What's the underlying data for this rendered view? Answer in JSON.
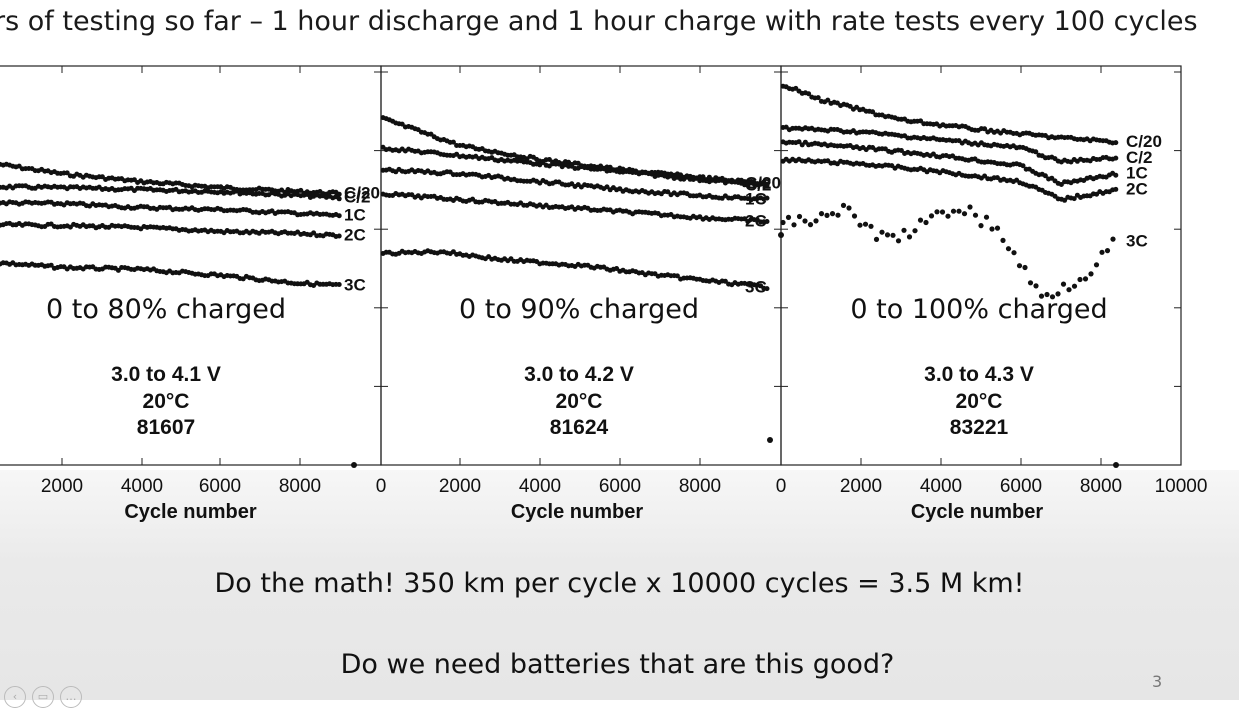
{
  "slide": {
    "title": "rs of testing so far – 1 hour discharge and 1 hour charge with rate tests every 100 cycles",
    "line1": "Do the math!  350 km per cycle x 10000 cycles = 3.5 M km!",
    "line2": "Do we need batteries that are this good?",
    "page_number": "3"
  },
  "controls": [
    {
      "icon": "prev-icon",
      "glyph": "‹"
    },
    {
      "icon": "slides-icon",
      "glyph": "▭"
    },
    {
      "icon": "more-icon",
      "glyph": "…"
    }
  ],
  "chart_data": [
    {
      "type": "scatter",
      "condition": "0 to 80% charged",
      "voltage": "3.0 to 4.1 V",
      "temperature": "20°C",
      "cell_id": "81607",
      "xlabel": "Cycle number",
      "xticks": [
        "2000",
        "4000",
        "6000",
        "8000"
      ],
      "xlim": [
        -1500,
        10000
      ],
      "ylim": [
        0,
        1
      ],
      "series": [
        {
          "name": "C/20",
          "x": [
            -1500,
            0,
            2000,
            4000,
            6000,
            8000,
            9000
          ],
          "values": [
            0.785,
            0.76,
            0.73,
            0.71,
            0.695,
            0.685,
            0.68
          ]
        },
        {
          "name": "C/2",
          "x": [
            -1500,
            2000,
            4000,
            6000,
            8000,
            9000
          ],
          "values": [
            0.7,
            0.695,
            0.69,
            0.685,
            0.675,
            0.67
          ]
        },
        {
          "name": "1C",
          "x": [
            -1500,
            2000,
            4000,
            6000,
            8000,
            9000
          ],
          "values": [
            0.66,
            0.655,
            0.645,
            0.64,
            0.63,
            0.625
          ]
        },
        {
          "name": "2C",
          "x": [
            -1500,
            2000,
            4000,
            6000,
            8000,
            9000
          ],
          "values": [
            0.605,
            0.6,
            0.595,
            0.585,
            0.58,
            0.575
          ]
        },
        {
          "name": "3C",
          "x": [
            -1500,
            0,
            2000,
            4000,
            6000,
            8000,
            9000
          ],
          "values": [
            0.52,
            0.51,
            0.495,
            0.49,
            0.475,
            0.455,
            0.45
          ]
        }
      ]
    },
    {
      "type": "scatter",
      "condition": "0 to 90% charged",
      "voltage": "3.0 to 4.2 V",
      "temperature": "20°C",
      "cell_id": "81624",
      "xlabel": "Cycle number",
      "xticks": [
        "2000",
        "4000",
        "6000",
        "8000"
      ],
      "xlim": [
        0,
        10000
      ],
      "ylim": [
        0,
        1
      ],
      "series": [
        {
          "name": "C/20",
          "x": [
            0,
            2000,
            4000,
            6000,
            8000,
            9700
          ],
          "values": [
            0.87,
            0.8,
            0.765,
            0.74,
            0.72,
            0.705
          ]
        },
        {
          "name": "C/2",
          "x": [
            0,
            2000,
            4000,
            6000,
            8000,
            9700
          ],
          "values": [
            0.795,
            0.775,
            0.755,
            0.735,
            0.715,
            0.7
          ]
        },
        {
          "name": "1C",
          "x": [
            0,
            2000,
            4000,
            6000,
            8000,
            9700
          ],
          "values": [
            0.74,
            0.73,
            0.71,
            0.69,
            0.675,
            0.665
          ]
        },
        {
          "name": "2C",
          "x": [
            0,
            2000,
            4000,
            6000,
            8000,
            9700
          ],
          "values": [
            0.68,
            0.665,
            0.65,
            0.635,
            0.62,
            0.61
          ]
        },
        {
          "name": "3C",
          "x": [
            0,
            1500,
            3000,
            5000,
            7000,
            9700
          ],
          "values": [
            0.53,
            0.535,
            0.515,
            0.5,
            0.475,
            0.445
          ]
        }
      ]
    },
    {
      "type": "scatter",
      "condition": "0 to 100% charged",
      "voltage": "3.0 to 4.3 V",
      "temperature": "20°C",
      "cell_id": "83221",
      "xlabel": "Cycle number",
      "xticks": [
        "0",
        "2000",
        "4000",
        "6000",
        "8000",
        "10000"
      ],
      "xlim": [
        0,
        10000
      ],
      "ylim": [
        0,
        1
      ],
      "series": [
        {
          "name": "C/20",
          "x": [
            0,
            1000,
            3000,
            5000,
            7000,
            8400
          ],
          "values": [
            0.955,
            0.915,
            0.865,
            0.84,
            0.82,
            0.81
          ]
        },
        {
          "name": "C/2",
          "x": [
            0,
            2000,
            4000,
            6000,
            7000,
            8400
          ],
          "values": [
            0.845,
            0.835,
            0.815,
            0.795,
            0.76,
            0.77
          ]
        },
        {
          "name": "1C",
          "x": [
            0,
            2000,
            4000,
            6000,
            7000,
            8400
          ],
          "values": [
            0.81,
            0.795,
            0.775,
            0.75,
            0.705,
            0.73
          ]
        },
        {
          "name": "2C",
          "x": [
            0,
            2000,
            4000,
            6000,
            7000,
            8400
          ],
          "values": [
            0.765,
            0.755,
            0.735,
            0.71,
            0.665,
            0.69
          ]
        },
        {
          "name": "3C",
          "x": [
            0,
            1500,
            2700,
            4500,
            5500,
            6500,
            7500,
            8400
          ],
          "values": [
            0.6,
            0.64,
            0.56,
            0.65,
            0.58,
            0.42,
            0.47,
            0.56
          ]
        }
      ]
    }
  ]
}
